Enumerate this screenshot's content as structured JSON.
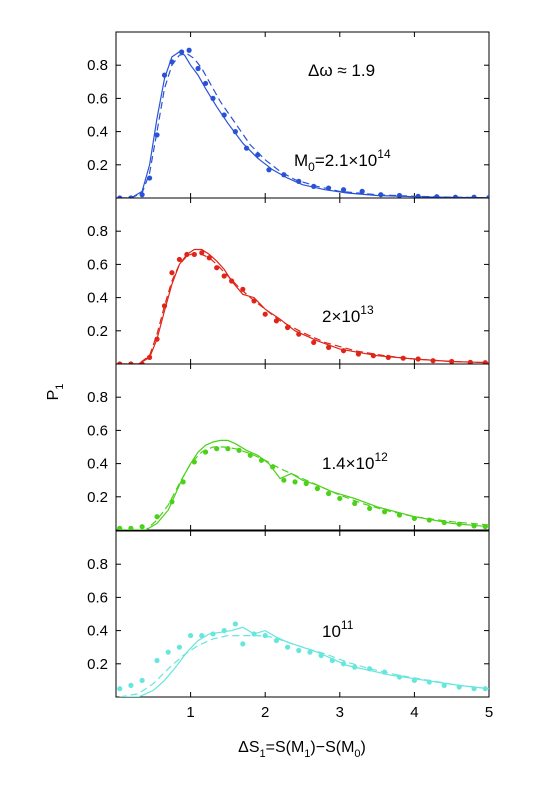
{
  "figure": {
    "ylabel_main": "P",
    "ylabel_sub": "1",
    "xlabel_parts": [
      "ΔS",
      "1",
      "=S(M",
      "1",
      ")−S(M",
      "0",
      ")"
    ]
  },
  "chart_data": [
    {
      "type": "line",
      "color": "#2a52d6",
      "xlim": [
        0,
        5
      ],
      "ylim": [
        0,
        1
      ],
      "xticks": [
        1,
        2,
        3,
        4,
        5
      ],
      "yticks": [
        0.2,
        0.4,
        0.6,
        0.8
      ],
      "ytick_labels": [
        "0.2",
        "0.4",
        "0.6",
        "0.8"
      ],
      "annotations": [
        {
          "main": "Δω ≈ 1.9",
          "sup": ""
        },
        {
          "main": "M",
          "sub": "0",
          "rest": "=2.1×10",
          "sup": "14"
        }
      ],
      "series": [
        {
          "style": "solid",
          "x": [
            0.05,
            0.2,
            0.35,
            0.45,
            0.55,
            0.65,
            0.75,
            0.85,
            0.92,
            1.0,
            1.1,
            1.2,
            1.35,
            1.5,
            1.7,
            1.9,
            2.1,
            2.3,
            2.5,
            2.8,
            3.1,
            3.5,
            4.0,
            4.5,
            5.0
          ],
          "y": [
            0.0,
            0.0,
            0.04,
            0.2,
            0.48,
            0.72,
            0.85,
            0.88,
            0.86,
            0.8,
            0.74,
            0.66,
            0.55,
            0.45,
            0.33,
            0.24,
            0.17,
            0.12,
            0.08,
            0.05,
            0.03,
            0.015,
            0.008,
            0.004,
            0.002
          ]
        },
        {
          "style": "dashed",
          "x": [
            0.05,
            0.2,
            0.35,
            0.45,
            0.55,
            0.65,
            0.75,
            0.85,
            0.95,
            1.05,
            1.15,
            1.25,
            1.4,
            1.6,
            1.8,
            2.0,
            2.2,
            2.4,
            2.7,
            3.0,
            3.5,
            4.0,
            4.5,
            5.0
          ],
          "y": [
            0.0,
            0.0,
            0.03,
            0.15,
            0.4,
            0.66,
            0.8,
            0.86,
            0.87,
            0.84,
            0.78,
            0.7,
            0.58,
            0.45,
            0.32,
            0.23,
            0.16,
            0.11,
            0.07,
            0.04,
            0.02,
            0.01,
            0.005,
            0.002
          ]
        },
        {
          "style": "dots",
          "x": [
            0.05,
            0.2,
            0.35,
            0.45,
            0.55,
            0.65,
            0.75,
            0.88,
            0.98,
            1.1,
            1.2,
            1.3,
            1.45,
            1.6,
            1.75,
            1.9,
            2.05,
            2.25,
            2.45,
            2.65,
            2.85,
            3.05,
            3.3,
            3.55,
            3.8,
            4.05,
            4.3,
            4.55,
            4.8,
            5.0
          ],
          "y": [
            0.0,
            0.0,
            0.02,
            0.12,
            0.38,
            0.74,
            0.82,
            0.88,
            0.89,
            0.78,
            0.69,
            0.6,
            0.5,
            0.4,
            0.3,
            0.26,
            0.17,
            0.14,
            0.1,
            0.07,
            0.06,
            0.05,
            0.04,
            0.02,
            0.015,
            0.01,
            0.008,
            0.005,
            0.005,
            0.003
          ]
        }
      ]
    },
    {
      "type": "line",
      "color": "#e02418",
      "xlim": [
        0,
        5
      ],
      "ylim": [
        0,
        1
      ],
      "xticks": [
        1,
        2,
        3,
        4,
        5
      ],
      "yticks": [
        0.2,
        0.4,
        0.6,
        0.8
      ],
      "ytick_labels": [
        "0.2",
        "0.4",
        "0.6",
        "0.8"
      ],
      "annotations": [
        {
          "main": "2×10",
          "sup": "13"
        }
      ],
      "series": [
        {
          "style": "solid",
          "x": [
            0.05,
            0.3,
            0.45,
            0.55,
            0.65,
            0.75,
            0.85,
            0.95,
            1.05,
            1.15,
            1.25,
            1.35,
            1.45,
            1.55,
            1.7,
            1.85,
            2.0,
            2.2,
            2.4,
            2.7,
            3.0,
            3.5,
            4.0,
            4.5,
            5.0
          ],
          "y": [
            0.0,
            0.0,
            0.04,
            0.15,
            0.32,
            0.48,
            0.6,
            0.66,
            0.69,
            0.69,
            0.66,
            0.62,
            0.57,
            0.5,
            0.42,
            0.4,
            0.33,
            0.27,
            0.2,
            0.14,
            0.09,
            0.05,
            0.03,
            0.015,
            0.008
          ]
        },
        {
          "style": "dashed",
          "x": [
            0.05,
            0.3,
            0.45,
            0.55,
            0.65,
            0.75,
            0.85,
            0.95,
            1.05,
            1.15,
            1.25,
            1.35,
            1.5,
            1.65,
            1.8,
            2.0,
            2.2,
            2.5,
            2.8,
            3.2,
            3.6,
            4.0,
            4.5,
            5.0
          ],
          "y": [
            0.0,
            0.0,
            0.05,
            0.18,
            0.35,
            0.5,
            0.6,
            0.65,
            0.67,
            0.66,
            0.64,
            0.6,
            0.53,
            0.46,
            0.4,
            0.33,
            0.26,
            0.19,
            0.13,
            0.08,
            0.05,
            0.03,
            0.015,
            0.008
          ]
        },
        {
          "style": "dots",
          "x": [
            0.05,
            0.2,
            0.35,
            0.45,
            0.55,
            0.65,
            0.75,
            0.85,
            0.95,
            1.05,
            1.15,
            1.25,
            1.35,
            1.45,
            1.55,
            1.7,
            1.85,
            2.0,
            2.15,
            2.3,
            2.45,
            2.65,
            2.85,
            3.05,
            3.25,
            3.45,
            3.65,
            3.85,
            4.05,
            4.25,
            4.5,
            4.75,
            4.95
          ],
          "y": [
            0.0,
            0.0,
            0.0,
            0.04,
            0.15,
            0.35,
            0.55,
            0.63,
            0.66,
            0.66,
            0.67,
            0.64,
            0.58,
            0.53,
            0.5,
            0.45,
            0.38,
            0.3,
            0.26,
            0.22,
            0.18,
            0.13,
            0.1,
            0.08,
            0.06,
            0.05,
            0.04,
            0.035,
            0.03,
            0.02,
            0.015,
            0.01,
            0.008
          ]
        }
      ]
    },
    {
      "type": "line",
      "color": "#4cd11a",
      "xlim": [
        0,
        5
      ],
      "ylim": [
        0,
        1
      ],
      "xticks": [
        1,
        2,
        3,
        4,
        5
      ],
      "yticks": [
        0.2,
        0.4,
        0.6,
        0.8
      ],
      "ytick_labels": [
        "0.2",
        "0.4",
        "0.6",
        "0.8"
      ],
      "annotations": [
        {
          "main": "1.4×10",
          "sup": "12"
        }
      ],
      "series": [
        {
          "style": "solid",
          "x": [
            0.05,
            0.4,
            0.55,
            0.7,
            0.8,
            0.9,
            1.0,
            1.1,
            1.2,
            1.3,
            1.4,
            1.5,
            1.6,
            1.75,
            1.9,
            2.05,
            2.2,
            2.35,
            2.5,
            2.7,
            2.9,
            3.2,
            3.5,
            4.0,
            4.5,
            5.0
          ],
          "y": [
            0.0,
            0.0,
            0.04,
            0.12,
            0.22,
            0.32,
            0.4,
            0.47,
            0.51,
            0.53,
            0.54,
            0.54,
            0.52,
            0.48,
            0.45,
            0.4,
            0.31,
            0.34,
            0.3,
            0.27,
            0.23,
            0.19,
            0.14,
            0.08,
            0.04,
            0.02
          ]
        },
        {
          "style": "dashed",
          "x": [
            0.05,
            0.4,
            0.55,
            0.7,
            0.85,
            1.0,
            1.15,
            1.3,
            1.45,
            1.6,
            1.8,
            2.0,
            2.2,
            2.4,
            2.6,
            2.8,
            3.0,
            3.3,
            3.6,
            4.0,
            4.5,
            5.0
          ],
          "y": [
            0.0,
            0.0,
            0.06,
            0.15,
            0.28,
            0.4,
            0.47,
            0.5,
            0.5,
            0.49,
            0.46,
            0.42,
            0.37,
            0.33,
            0.29,
            0.25,
            0.21,
            0.16,
            0.12,
            0.08,
            0.05,
            0.03
          ]
        },
        {
          "style": "dots",
          "x": [
            0.05,
            0.2,
            0.35,
            0.55,
            0.75,
            0.9,
            1.05,
            1.2,
            1.35,
            1.5,
            1.65,
            1.8,
            1.95,
            2.1,
            2.25,
            2.4,
            2.55,
            2.7,
            2.85,
            3.0,
            3.2,
            3.4,
            3.6,
            3.8,
            4.0,
            4.2,
            4.4,
            4.6,
            4.8,
            4.95
          ],
          "y": [
            0.01,
            0.01,
            0.02,
            0.08,
            0.17,
            0.29,
            0.41,
            0.47,
            0.49,
            0.49,
            0.48,
            0.45,
            0.42,
            0.38,
            0.3,
            0.29,
            0.28,
            0.25,
            0.22,
            0.19,
            0.16,
            0.13,
            0.11,
            0.09,
            0.07,
            0.06,
            0.045,
            0.035,
            0.025,
            0.02
          ]
        }
      ]
    },
    {
      "type": "line",
      "color": "#66e6dc",
      "xlim": [
        0,
        5
      ],
      "ylim": [
        0,
        1
      ],
      "xticks": [
        1,
        2,
        3,
        4,
        5
      ],
      "yticks": [
        0.2,
        0.4,
        0.6,
        0.8
      ],
      "ytick_labels": [
        "0.2",
        "0.4",
        "0.6",
        "0.8"
      ],
      "annotations": [
        {
          "main": "10",
          "sup": "11"
        }
      ],
      "series": [
        {
          "style": "solid",
          "x": [
            0.05,
            0.3,
            0.5,
            0.65,
            0.8,
            0.95,
            1.1,
            1.25,
            1.4,
            1.55,
            1.7,
            1.85,
            2.0,
            2.15,
            2.3,
            2.5,
            2.7,
            2.9,
            3.1,
            3.4,
            3.7,
            4.0,
            4.3,
            4.6,
            5.0
          ],
          "y": [
            0.0,
            0.0,
            0.04,
            0.1,
            0.18,
            0.27,
            0.34,
            0.38,
            0.39,
            0.4,
            0.42,
            0.38,
            0.4,
            0.36,
            0.33,
            0.3,
            0.27,
            0.23,
            0.19,
            0.16,
            0.13,
            0.11,
            0.09,
            0.07,
            0.05
          ]
        },
        {
          "style": "dashed",
          "x": [
            0.05,
            0.3,
            0.5,
            0.7,
            0.9,
            1.1,
            1.3,
            1.5,
            1.7,
            1.9,
            2.1,
            2.3,
            2.5,
            2.8,
            3.1,
            3.4,
            3.8,
            4.2,
            4.6,
            5.0
          ],
          "y": [
            0.0,
            0.02,
            0.08,
            0.17,
            0.25,
            0.31,
            0.35,
            0.37,
            0.37,
            0.37,
            0.36,
            0.33,
            0.3,
            0.26,
            0.21,
            0.17,
            0.13,
            0.1,
            0.07,
            0.05
          ]
        },
        {
          "style": "dots",
          "x": [
            0.05,
            0.2,
            0.35,
            0.55,
            0.7,
            0.85,
            1.0,
            1.15,
            1.3,
            1.45,
            1.6,
            1.7,
            1.85,
            2.0,
            2.15,
            2.3,
            2.45,
            2.6,
            2.75,
            2.9,
            3.05,
            3.2,
            3.4,
            3.6,
            3.8,
            4.0,
            4.2,
            4.4,
            4.6,
            4.8,
            4.95
          ],
          "y": [
            0.05,
            0.07,
            0.1,
            0.22,
            0.27,
            0.3,
            0.37,
            0.37,
            0.38,
            0.4,
            0.44,
            0.32,
            0.38,
            0.37,
            0.34,
            0.3,
            0.28,
            0.27,
            0.25,
            0.22,
            0.2,
            0.18,
            0.17,
            0.15,
            0.12,
            0.1,
            0.09,
            0.07,
            0.06,
            0.05,
            0.05
          ]
        }
      ]
    }
  ]
}
